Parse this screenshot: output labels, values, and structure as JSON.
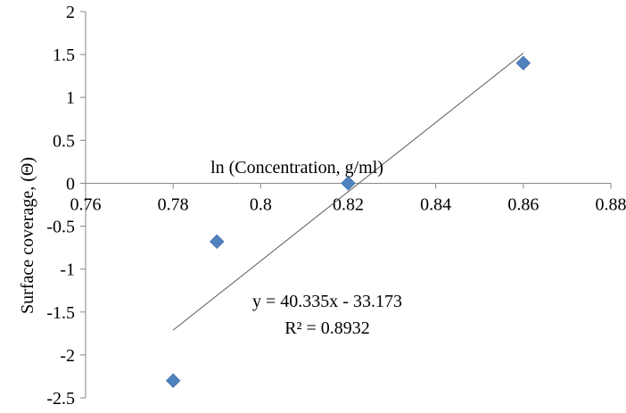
{
  "chart_data": {
    "type": "scatter",
    "x_axis": {
      "label": "ln (Concentration, g/ml)",
      "range": [
        0.76,
        0.88
      ],
      "ticks": [
        0.76,
        0.78,
        0.8,
        0.82,
        0.84,
        0.86,
        0.88
      ],
      "tick_labels": [
        "0.76",
        "0.78",
        "0.8",
        "0.82",
        "0.84",
        "0.86",
        "0.88"
      ]
    },
    "y_axis": {
      "label": "Surface coverage, (Θ)",
      "range": [
        -2.5,
        2
      ],
      "ticks": [
        2,
        1.5,
        1,
        0.5,
        0,
        -0.5,
        -1,
        -1.5,
        -2,
        -2.5
      ],
      "tick_labels": [
        "2",
        "1.5",
        "1",
        "0.5",
        "0",
        "-0.5",
        "-1",
        "-1.5",
        "-2",
        "-2.5"
      ]
    },
    "grid": false,
    "series": [
      {
        "marker": "diamond",
        "color": "#4F81BD",
        "points": [
          {
            "x": 0.78,
            "y": -2.3
          },
          {
            "x": 0.79,
            "y": -0.68
          },
          {
            "x": 0.82,
            "y": 0.0
          },
          {
            "x": 0.86,
            "y": 1.4
          }
        ]
      }
    ],
    "trendline": {
      "type": "linear",
      "slope": 40.335,
      "intercept": -33.173,
      "x_range": [
        0.78,
        0.86
      ],
      "color": "#595959"
    },
    "annotations": {
      "equation": "y = 40.335x - 33.173",
      "r_squared": "R² = 0.8932"
    }
  }
}
